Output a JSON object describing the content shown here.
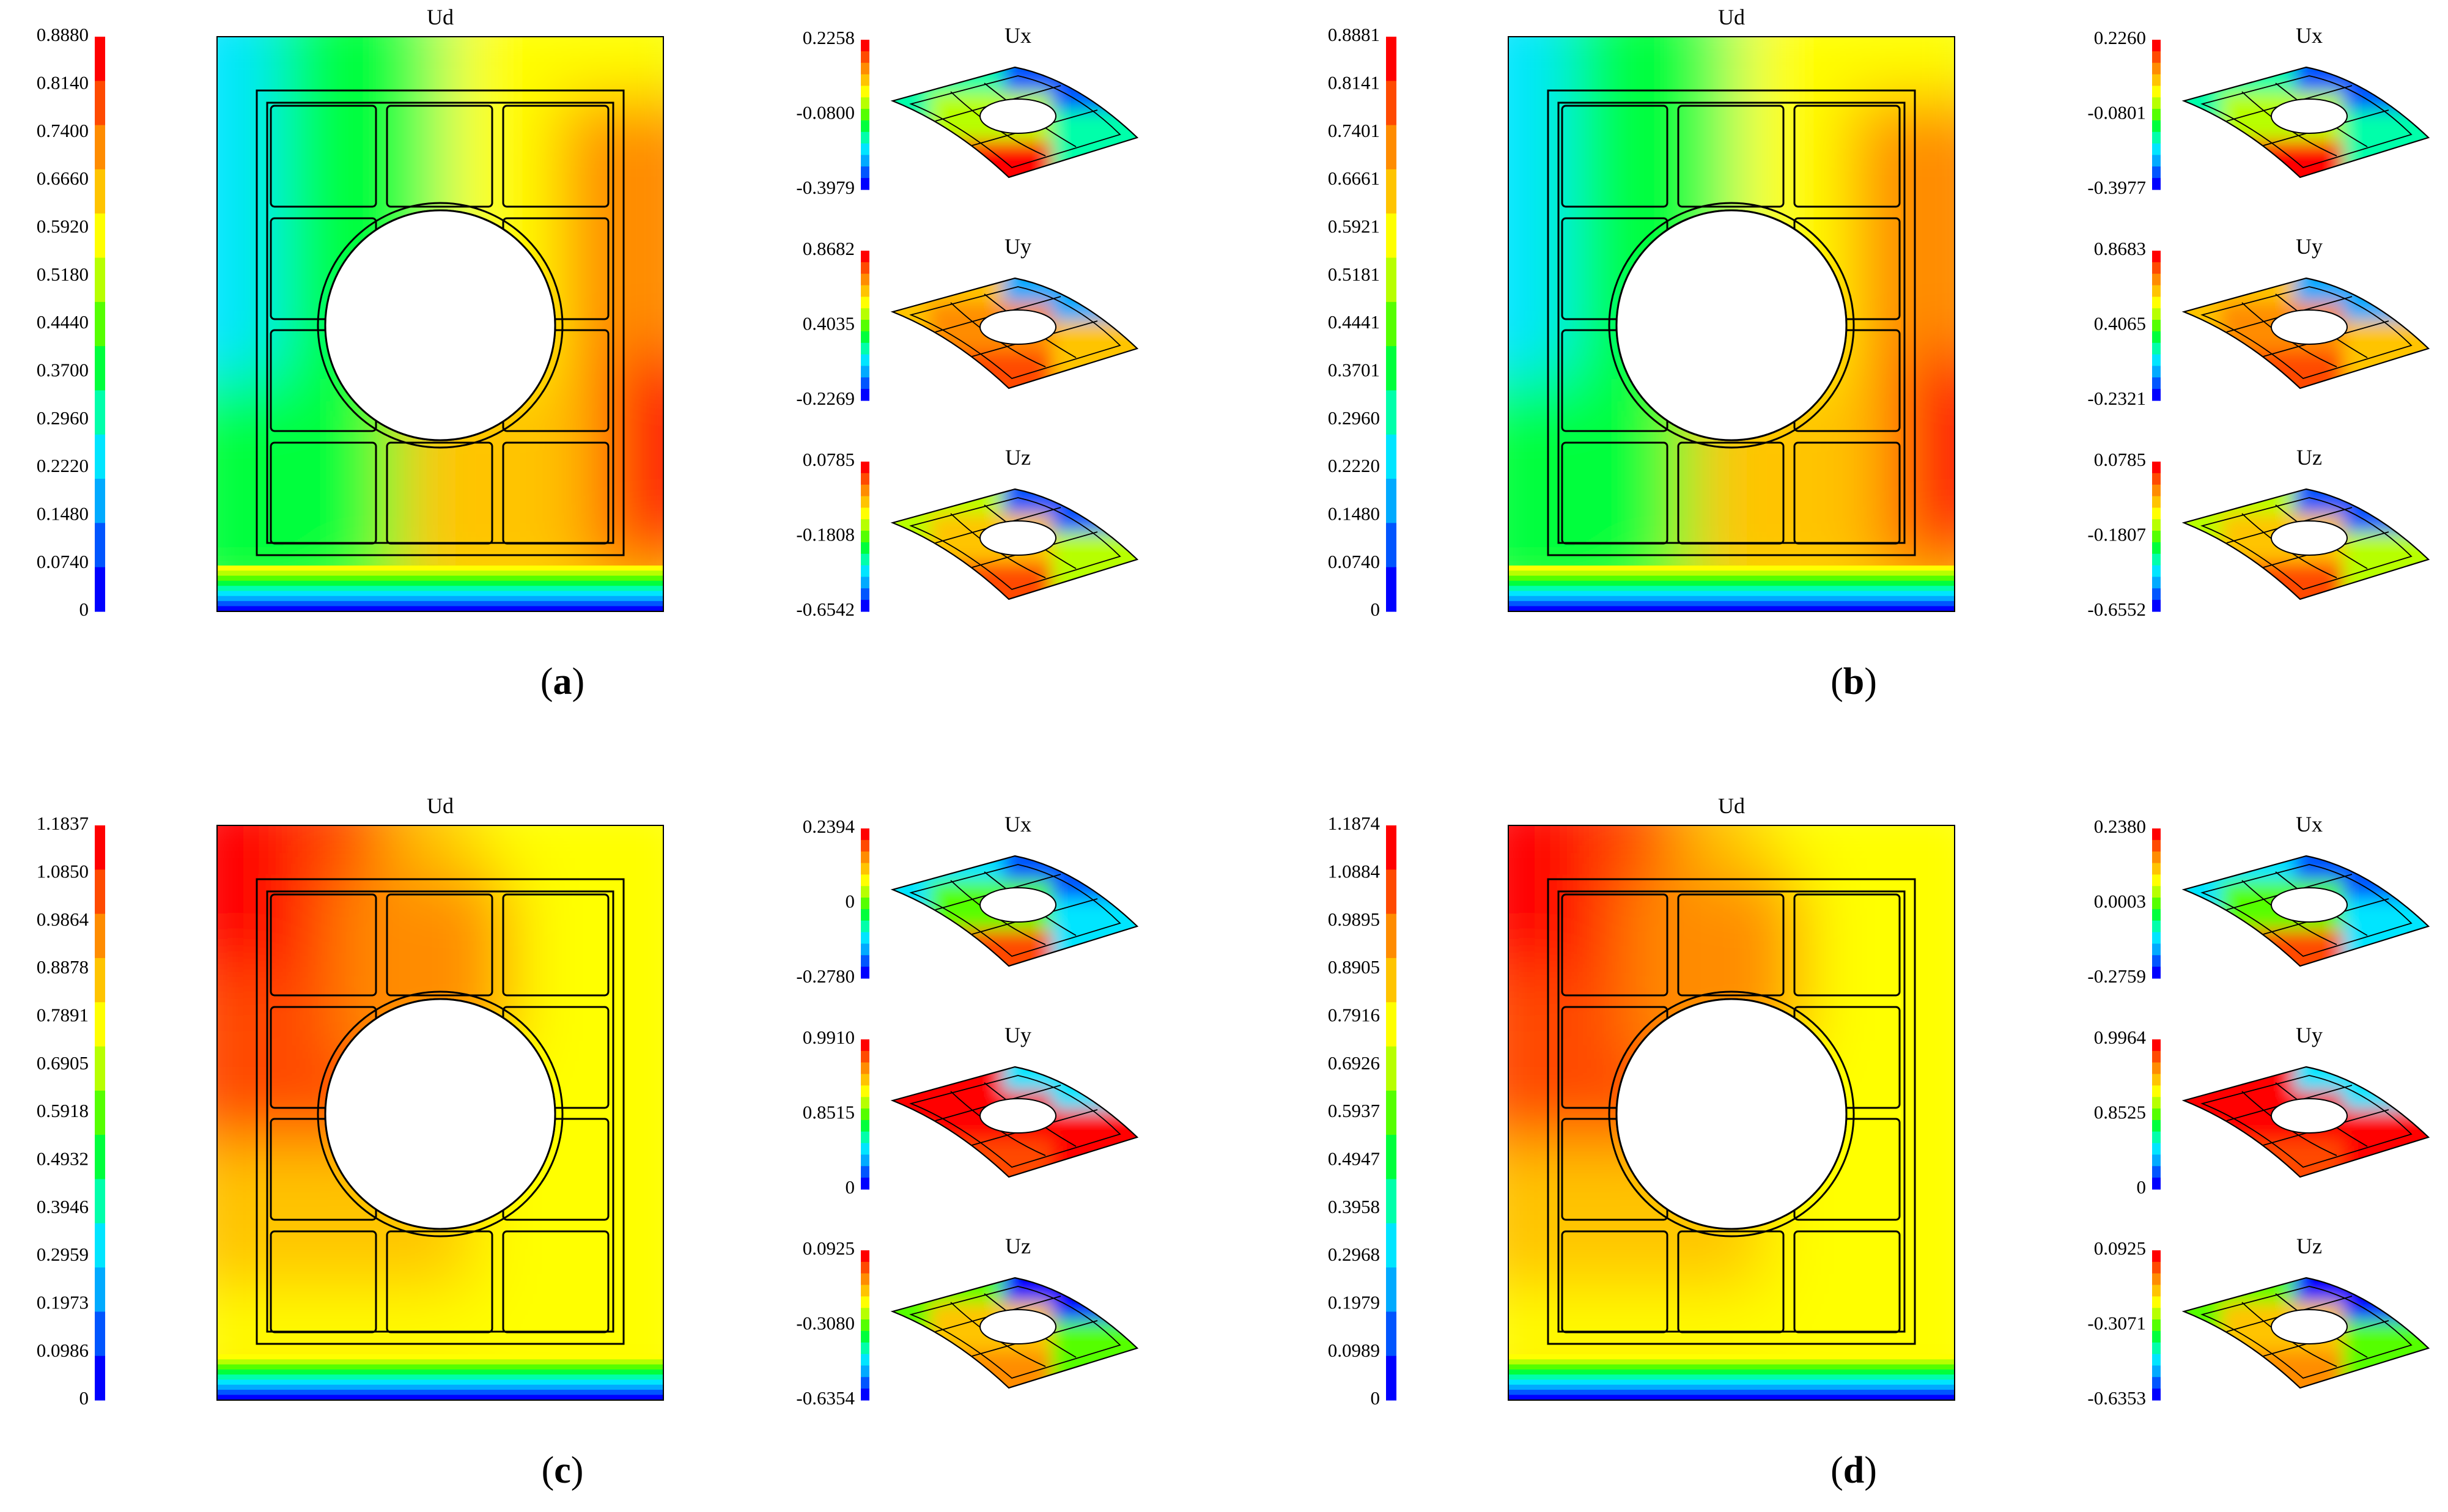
{
  "colormap": [
    "#0000ff",
    "#0055ff",
    "#00aaff",
    "#00e5ff",
    "#00ffaa",
    "#00ff3c",
    "#55ff00",
    "#b7ff00",
    "#ffff00",
    "#ffc400",
    "#ff8c00",
    "#ff4a00",
    "#ff0000"
  ],
  "panels": [
    {
      "id": "a",
      "label": "a",
      "ud": {
        "title": "Ud",
        "ticks": [
          "0.8880",
          "0.8140",
          "0.7400",
          "0.6660",
          "0.5920",
          "0.5180",
          "0.4440",
          "0.3700",
          "0.2960",
          "0.2220",
          "0.1480",
          "0.0740",
          "0"
        ]
      },
      "ux": {
        "title": "Ux",
        "ticks": [
          "0.2258",
          "-0.0800",
          "-0.3979"
        ]
      },
      "uy": {
        "title": "Uy",
        "ticks": [
          "0.8682",
          "0.4035",
          "-0.2269"
        ]
      },
      "uz": {
        "title": "Uz",
        "ticks": [
          "0.0785",
          "-0.1808",
          "-0.6542"
        ]
      }
    },
    {
      "id": "b",
      "label": "b",
      "ud": {
        "title": "Ud",
        "ticks": [
          "0.8881",
          "0.8141",
          "0.7401",
          "0.6661",
          "0.5921",
          "0.5181",
          "0.4441",
          "0.3701",
          "0.2960",
          "0.2220",
          "0.1480",
          "0.0740",
          "0"
        ]
      },
      "ux": {
        "title": "Ux",
        "ticks": [
          "0.2260",
          "-0.0801",
          "-0.3977"
        ]
      },
      "uy": {
        "title": "Uy",
        "ticks": [
          "0.8683",
          "0.4065",
          "-0.2321"
        ]
      },
      "uz": {
        "title": "Uz",
        "ticks": [
          "0.0785",
          "-0.1807",
          "-0.6552"
        ]
      }
    },
    {
      "id": "c",
      "label": "c",
      "ud": {
        "title": "Ud",
        "ticks": [
          "1.1837",
          "1.0850",
          "0.9864",
          "0.8878",
          "0.7891",
          "0.6905",
          "0.5918",
          "0.4932",
          "0.3946",
          "0.2959",
          "0.1973",
          "0.0986",
          "0"
        ]
      },
      "ux": {
        "title": "Ux",
        "ticks": [
          "0.2394",
          "0",
          "-0.2780"
        ]
      },
      "uy": {
        "title": "Uy",
        "ticks": [
          "0.9910",
          "0.8515",
          "0"
        ]
      },
      "uz": {
        "title": "Uz",
        "ticks": [
          "0.0925",
          "-0.3080",
          "-0.6354"
        ]
      }
    },
    {
      "id": "d",
      "label": "d",
      "ud": {
        "title": "Ud",
        "ticks": [
          "1.1874",
          "1.0884",
          "0.9895",
          "0.8905",
          "0.7916",
          "0.6926",
          "0.5937",
          "0.4947",
          "0.3958",
          "0.2968",
          "0.1979",
          "0.0989",
          "0"
        ]
      },
      "ux": {
        "title": "Ux",
        "ticks": [
          "0.2380",
          "0.0003",
          "-0.2759"
        ]
      },
      "uy": {
        "title": "Uy",
        "ticks": [
          "0.9964",
          "0.8525",
          "0"
        ]
      },
      "uz": {
        "title": "Uz",
        "ticks": [
          "0.0925",
          "-0.3071",
          "-0.6353"
        ]
      }
    }
  ]
}
